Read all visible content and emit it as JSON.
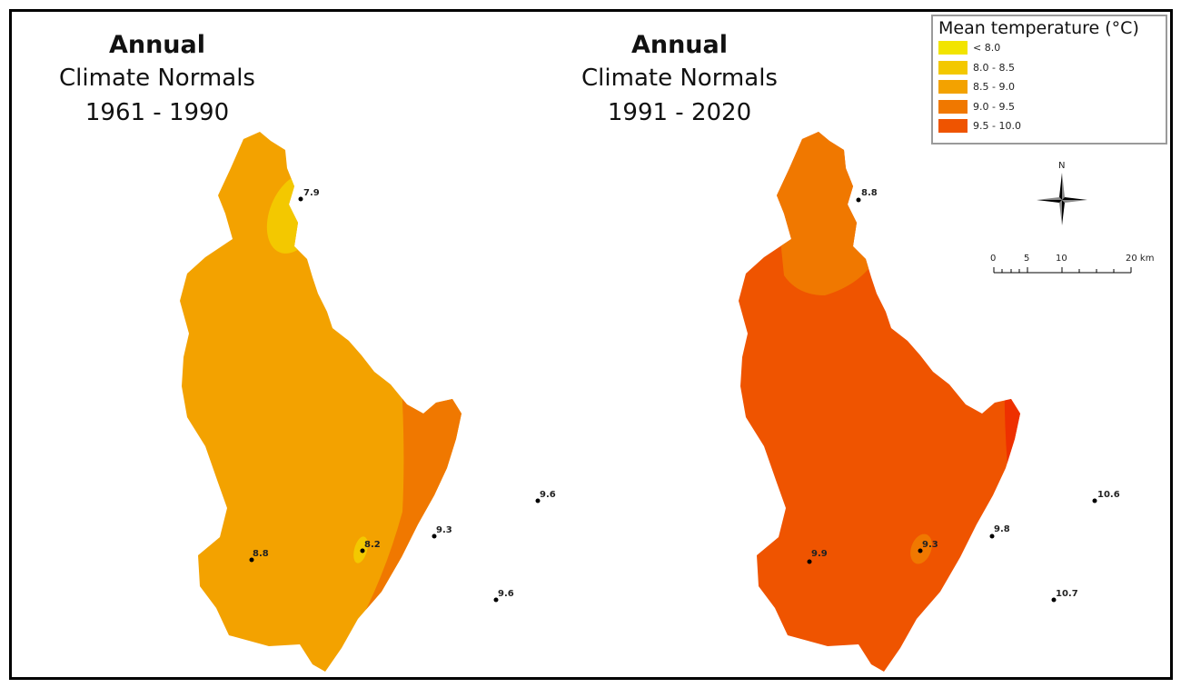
{
  "maps": [
    {
      "heading": "Annual",
      "subtitle": "Climate Normals",
      "period": "1961 - 1990",
      "stations": [
        "7.9",
        "8.8",
        "8.2",
        "9.3",
        "9.6",
        "9.6"
      ]
    },
    {
      "heading": "Annual",
      "subtitle": "Climate Normals",
      "period": "1991 - 2020",
      "stations": [
        "8.8",
        "9.9",
        "9.3",
        "9.8",
        "10.6",
        "10.7"
      ]
    }
  ],
  "legend": {
    "title": "Mean temperature (°C)",
    "classes": [
      {
        "label": "< 8.0",
        "color": "#f2e400"
      },
      {
        "label": "8.0 - 8.5",
        "color": "#f3c800"
      },
      {
        "label": "8.5 - 9.0",
        "color": "#f3a200"
      },
      {
        "label": "9.0 - 9.5",
        "color": "#f07800"
      },
      {
        "label": "9.5 - 10.0",
        "color": "#ef5400"
      }
    ]
  },
  "north_arrow": {
    "label": "N"
  },
  "scale_bar": {
    "ticks": [
      "0",
      "5",
      "10",
      "20 km"
    ]
  },
  "extra_colors": {
    "class_10_0_10_5": "#ee3000",
    "class_above_10_5": "#e81500"
  }
}
